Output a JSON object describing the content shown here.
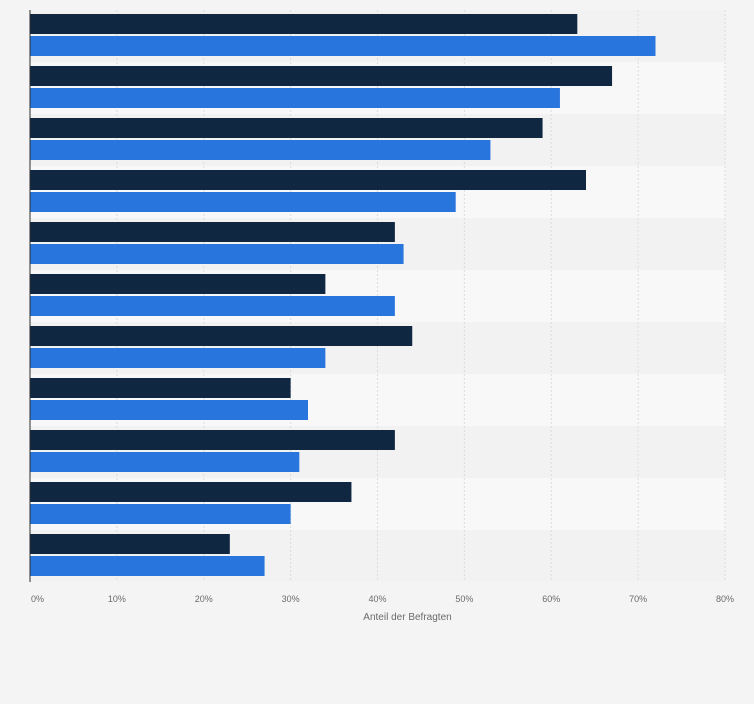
{
  "chart_data": {
    "type": "bar",
    "orientation": "horizontal",
    "categories": [
      "",
      "",
      "",
      "",
      "",
      "",
      "",
      "",
      "",
      "",
      ""
    ],
    "series": [
      {
        "color": "#0f2741",
        "values": [
          63,
          67,
          59,
          64,
          42,
          34,
          44,
          30,
          42,
          37,
          23
        ]
      },
      {
        "color": "#2876dd",
        "values": [
          72,
          61,
          53,
          49,
          43,
          42,
          34,
          32,
          31,
          30,
          27
        ]
      }
    ],
    "xlim": [
      0,
      80
    ],
    "x_ticks": [
      "0%",
      "10%",
      "20%",
      "30%",
      "40%",
      "50%",
      "60%",
      "70%",
      "80%"
    ],
    "xlabel": "Anteil der Befragten",
    "grid": true,
    "legend": "none"
  }
}
